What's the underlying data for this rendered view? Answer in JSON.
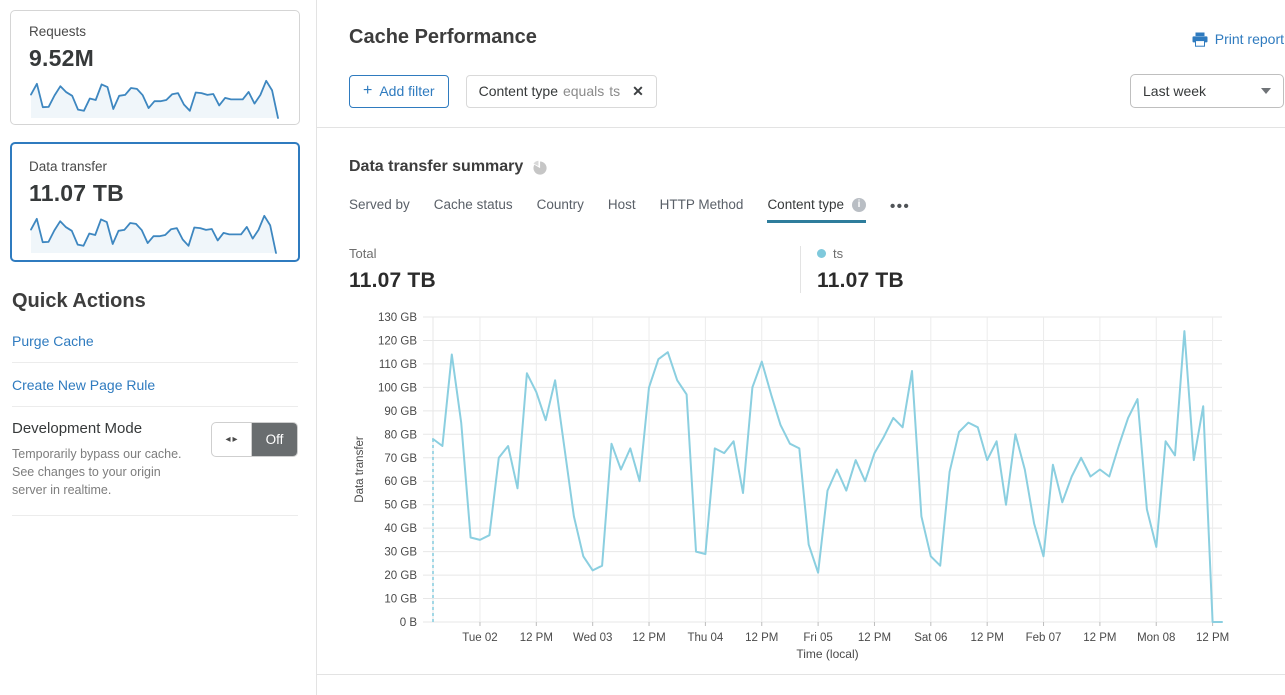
{
  "colors": {
    "accent_blue": "#2f7bbf",
    "chart_line": "#8bcfe0",
    "legend_dot": "#7fc9dc",
    "tab_underline": "#2e7d9c",
    "sparkline": "#3e87c0"
  },
  "sidebar": {
    "requests": {
      "label": "Requests",
      "value": "9.52M",
      "sparkline": [
        78,
        114,
        36,
        37,
        75,
        106,
        86,
        74,
        28,
        24,
        65,
        60,
        112,
        103,
        30,
        74,
        77,
        100,
        97,
        76,
        33,
        56,
        56,
        60,
        79,
        83,
        45,
        24,
        85,
        83,
        77,
        80,
        42,
        67,
        62,
        62,
        62,
        87,
        48,
        77,
        124,
        92,
        0
      ]
    },
    "data_transfer": {
      "label": "Data transfer",
      "value": "11.07 TB",
      "selected": true,
      "sparkline": [
        78,
        114,
        36,
        37,
        75,
        106,
        86,
        74,
        28,
        24,
        65,
        60,
        112,
        103,
        30,
        74,
        77,
        100,
        97,
        76,
        33,
        56,
        56,
        60,
        79,
        83,
        45,
        24,
        85,
        83,
        77,
        80,
        42,
        67,
        62,
        62,
        62,
        87,
        48,
        77,
        124,
        92,
        0
      ]
    },
    "quick_actions": {
      "title": "Quick Actions",
      "links": [
        "Purge Cache",
        "Create New Page Rule"
      ],
      "dev_mode": {
        "title": "Development Mode",
        "description": "Temporarily bypass our cache. See changes to your origin server in realtime.",
        "arrows_glyph": "◂▸",
        "toggle_state": "Off"
      }
    }
  },
  "header": {
    "title": "Cache Performance",
    "print_label": "Print report"
  },
  "filters": {
    "add_filter": {
      "icon": "+",
      "label": "Add filter"
    },
    "chip": {
      "field": "Content type",
      "operator": "equals",
      "value": "ts",
      "close_glyph": "✕"
    },
    "time_range": "Last week"
  },
  "summary": {
    "title": "Data transfer summary",
    "tabs": [
      {
        "label": "Served by"
      },
      {
        "label": "Cache status"
      },
      {
        "label": "Country"
      },
      {
        "label": "Host"
      },
      {
        "label": "HTTP Method"
      },
      {
        "label": "Content type",
        "active": true
      }
    ],
    "more_label": "•••",
    "totals": {
      "total_label": "Total",
      "total_value": "11.07 TB"
    },
    "legend": {
      "label": "ts",
      "value": "11.07 TB",
      "color": "#7fc9dc"
    }
  },
  "chart_data": {
    "type": "line",
    "title": "Data transfer summary",
    "xlabel": "Time (local)",
    "ylabel": "Data transfer",
    "y_unit": "GB",
    "ylim": [
      0,
      130
    ],
    "grid": true,
    "y_tick_labels": [
      "0 B",
      "10 GB",
      "20 GB",
      "30 GB",
      "40 GB",
      "50 GB",
      "60 GB",
      "70 GB",
      "80 GB",
      "90 GB",
      "100 GB",
      "110 GB",
      "120 GB",
      "130 GB"
    ],
    "x_tick_labels": [
      "Tue 02",
      "12 PM",
      "Wed 03",
      "12 PM",
      "Thu 04",
      "12 PM",
      "Fri 05",
      "12 PM",
      "Sat 06",
      "12 PM",
      "Feb 07",
      "12 PM",
      "Mon 08",
      "12 PM"
    ],
    "x_tick_first_index": 5,
    "x_tick_every": 6,
    "sample_interval_hours": 2,
    "start_marker": "dashed vertical line at first sample",
    "series": [
      {
        "name": "ts",
        "color": "#8bcfe0",
        "values_gb": [
          78,
          75,
          114,
          85,
          36,
          35,
          37,
          70,
          75,
          57,
          106,
          98,
          86,
          103,
          74,
          45,
          28,
          22,
          24,
          76,
          65,
          74,
          60,
          100,
          112,
          115,
          103,
          97,
          30,
          29,
          74,
          72,
          77,
          55,
          100,
          111,
          97,
          84,
          76,
          74,
          33,
          21,
          56,
          65,
          56,
          69,
          60,
          72,
          79,
          87,
          83,
          107,
          45,
          28,
          24,
          64,
          81,
          85,
          83,
          69,
          77,
          50,
          80,
          65,
          42,
          28,
          67,
          51,
          62,
          70,
          62,
          65,
          62,
          75,
          87,
          95,
          48,
          32,
          77,
          71,
          124,
          69,
          92,
          0,
          0
        ]
      }
    ]
  }
}
